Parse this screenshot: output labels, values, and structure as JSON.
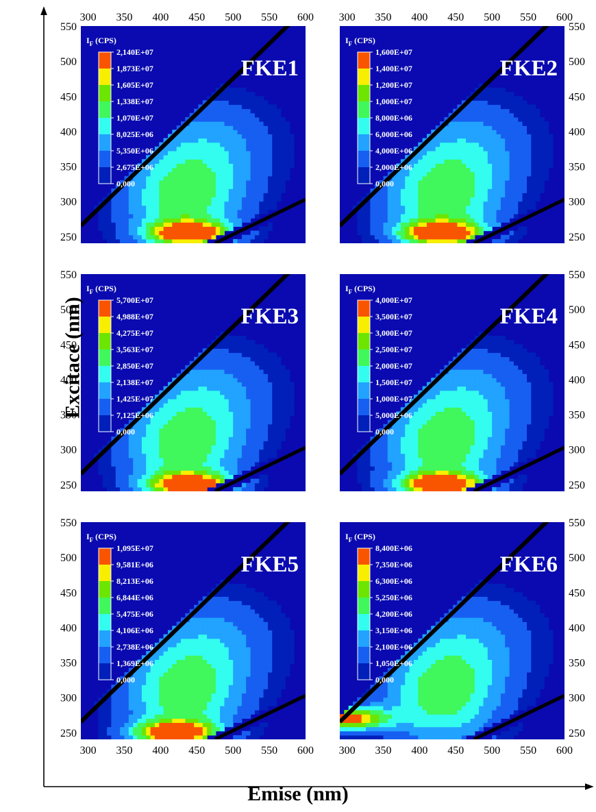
{
  "figure": {
    "x_title": "Emise (nm)",
    "y_title": "Excitace (nm)",
    "colorbar_title_main": "I",
    "colorbar_title_sub": "F",
    "colorbar_title_unit": " (CPS)"
  },
  "chart_data": [
    {
      "type": "heatmap",
      "name": "FKE1",
      "xlim": [
        290,
        600
      ],
      "ylim": [
        240,
        550
      ],
      "x_ticks": [
        300,
        350,
        400,
        450,
        500,
        550,
        600
      ],
      "y_ticks": [
        250,
        300,
        350,
        400,
        450,
        500,
        550
      ],
      "colorbar_ticks": [
        "2,140E+07",
        "1,873E+07",
        "1,605E+07",
        "1,338E+07",
        "1,070E+07",
        "8,025E+06",
        "5,350E+06",
        "2,675E+06",
        "0,000"
      ],
      "peak": {
        "emission": 440,
        "excitation": 255
      }
    },
    {
      "type": "heatmap",
      "name": "FKE2",
      "xlim": [
        290,
        600
      ],
      "ylim": [
        240,
        550
      ],
      "x_ticks": [
        300,
        350,
        400,
        450,
        500,
        550,
        600
      ],
      "y_ticks": [
        250,
        300,
        350,
        400,
        450,
        500,
        550
      ],
      "colorbar_ticks": [
        "1,600E+07",
        "1,400E+07",
        "1,200E+07",
        "1,000E+07",
        "8,000E+06",
        "6,000E+06",
        "4,000E+06",
        "2,000E+06",
        "0,000"
      ],
      "peak": {
        "emission": 430,
        "excitation": 255
      }
    },
    {
      "type": "heatmap",
      "name": "FKE3",
      "xlim": [
        290,
        600
      ],
      "ylim": [
        240,
        550
      ],
      "x_ticks": [
        300,
        350,
        400,
        450,
        500,
        550,
        600
      ],
      "y_ticks": [
        250,
        300,
        350,
        400,
        450,
        500,
        550
      ],
      "colorbar_ticks": [
        "5,700E+07",
        "4,988E+07",
        "4,275E+07",
        "3,563E+07",
        "2,850E+07",
        "2,138E+07",
        "1,425E+07",
        "7,125E+06",
        "0,000"
      ],
      "peak": {
        "emission": 440,
        "excitation": 250
      }
    },
    {
      "type": "heatmap",
      "name": "FKE4",
      "xlim": [
        290,
        600
      ],
      "ylim": [
        240,
        550
      ],
      "x_ticks": [
        300,
        350,
        400,
        450,
        500,
        550,
        600
      ],
      "y_ticks": [
        250,
        300,
        350,
        400,
        450,
        500,
        550
      ],
      "colorbar_ticks": [
        "4,000E+07",
        "3,500E+07",
        "3,000E+07",
        "2,500E+07",
        "2,000E+07",
        "1,500E+07",
        "1,000E+07",
        "5,000E+06",
        "0,000"
      ],
      "peak": {
        "emission": 430,
        "excitation": 250
      }
    },
    {
      "type": "heatmap",
      "name": "FKE5",
      "xlim": [
        290,
        600
      ],
      "ylim": [
        240,
        550
      ],
      "x_ticks": [
        300,
        350,
        400,
        450,
        500,
        550,
        600
      ],
      "y_ticks": [
        250,
        300,
        350,
        400,
        450,
        500,
        550
      ],
      "colorbar_ticks": [
        "1,095E+07",
        "9,581E+06",
        "8,213E+06",
        "6,844E+06",
        "5,475E+06",
        "4,106E+06",
        "2,738E+06",
        "1,369E+06",
        "0,000"
      ],
      "peak": {
        "emission": 420,
        "excitation": 250
      }
    },
    {
      "type": "heatmap",
      "name": "FKE6",
      "xlim": [
        290,
        600
      ],
      "ylim": [
        240,
        550
      ],
      "x_ticks": [
        300,
        350,
        400,
        450,
        500,
        550,
        600
      ],
      "y_ticks": [
        250,
        300,
        350,
        400,
        450,
        500,
        550
      ],
      "colorbar_ticks": [
        "8,400E+06",
        "7,350E+06",
        "6,300E+06",
        "5,250E+06",
        "4,200E+06",
        "3,150E+06",
        "2,100E+06",
        "1,050E+06",
        "0,000"
      ],
      "peak": {
        "emission": 300,
        "excitation": 270
      }
    }
  ]
}
